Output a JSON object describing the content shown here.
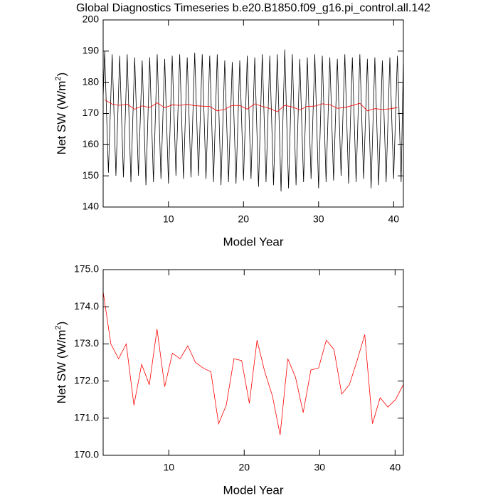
{
  "chart_data": [
    {
      "type": "line",
      "title": "Global Diagnostics Timeseries b.e20.B1850.f09_g16.pi_control.all.142",
      "x_label": "Model Year",
      "y_label": [
        "Net SW (W/m",
        "2",
        ")"
      ],
      "xlim": [
        1.3,
        41.3
      ],
      "xticks": [
        10,
        20,
        30,
        40
      ],
      "ylim": [
        140,
        200
      ],
      "yticks": [
        140,
        150,
        160,
        170,
        180,
        190,
        200
      ],
      "series": [
        {
          "color": "#000000",
          "x": [
            1.3,
            1.5,
            2,
            2.5,
            3,
            3.5,
            4,
            4.5,
            5,
            5.5,
            6,
            6.5,
            7,
            7.5,
            8,
            8.5,
            9,
            9.5,
            10,
            10.5,
            11,
            11.5,
            12,
            12.5,
            13,
            13.5,
            14,
            14.5,
            15,
            15.5,
            16,
            16.5,
            17,
            17.5,
            18,
            18.5,
            19,
            19.5,
            20,
            20.5,
            21,
            21.5,
            22,
            22.5,
            23,
            23.5,
            24,
            24.5,
            25,
            25.5,
            26,
            26.5,
            27,
            27.5,
            28,
            28.5,
            29,
            29.5,
            30,
            30.5,
            31,
            31.5,
            32,
            32.5,
            33,
            33.5,
            34,
            34.5,
            35,
            35.5,
            36,
            36.5,
            37,
            37.5,
            38,
            38.5,
            39,
            39.5,
            40,
            40.5,
            41,
            41.3
          ],
          "values": [
            175,
            190,
            151,
            189,
            150,
            188.5,
            149.5,
            189,
            148,
            188,
            150,
            187,
            147,
            188,
            148,
            189,
            149,
            187.5,
            147.5,
            188.5,
            150,
            189,
            149,
            188,
            149.5,
            189.5,
            150,
            189,
            149,
            188.5,
            148,
            189,
            147,
            187,
            148,
            186.5,
            147.5,
            187,
            148.5,
            188.5,
            149,
            188,
            146.5,
            189,
            148,
            188.5,
            147,
            189,
            145,
            190.5,
            146,
            189,
            147,
            187.5,
            148,
            188,
            149,
            189,
            146,
            188.5,
            148,
            188,
            148.5,
            187.5,
            150,
            189,
            147.5,
            188,
            148,
            189,
            149,
            187.5,
            146,
            188,
            147,
            187,
            148,
            188,
            149,
            188.5,
            148,
            188
          ]
        },
        {
          "color": "#ff0000",
          "x": [
            1.5,
            2.5,
            3.5,
            4.5,
            5.5,
            6.5,
            7.5,
            8.5,
            9.5,
            10.5,
            11.5,
            12.5,
            13.5,
            14.5,
            15.5,
            16.5,
            17.5,
            18.5,
            19.5,
            20.5,
            21.5,
            22.5,
            23.5,
            24.5,
            25.5,
            26.5,
            27.5,
            28.5,
            29.5,
            30.5,
            31.5,
            32.5,
            33.5,
            34.5,
            35.5,
            36.5,
            37.5,
            38.5,
            39.5,
            40.5
          ],
          "values": [
            174.4,
            173.0,
            172.6,
            173.0,
            171.35,
            172.45,
            171.9,
            173.4,
            171.85,
            172.75,
            172.6,
            172.95,
            172.5,
            172.35,
            172.25,
            170.85,
            171.35,
            172.6,
            172.55,
            171.4,
            173.1,
            172.25,
            171.6,
            170.55,
            172.6,
            172.1,
            171.15,
            172.3,
            172.35,
            173.1,
            172.85,
            171.65,
            171.9,
            172.55,
            173.25,
            170.85,
            171.55,
            171.3,
            171.5,
            171.9
          ]
        }
      ]
    },
    {
      "type": "line",
      "x_label": "Model Year",
      "y_label": [
        "Net SW (W/m",
        "2",
        ")"
      ],
      "xlim": [
        1.3,
        41.1
      ],
      "xticks": [
        10,
        20,
        30,
        40
      ],
      "ylim": [
        170,
        175
      ],
      "yticks": [
        {
          "value": 170,
          "label": "170.0"
        },
        {
          "value": 171,
          "label": "171.0"
        },
        {
          "value": 172,
          "label": "172.0"
        },
        {
          "value": 173,
          "label": "173.0"
        },
        {
          "value": 174,
          "label": "174.0"
        },
        {
          "value": 175,
          "label": "175.0"
        }
      ],
      "series": [
        {
          "color": "#ff0000",
          "x": [
            1.3,
            2.32,
            3.34,
            4.36,
            5.38,
            6.4,
            7.42,
            8.44,
            9.46,
            10.48,
            11.5,
            12.52,
            13.54,
            14.56,
            15.58,
            16.6,
            17.62,
            18.64,
            19.66,
            20.68,
            21.7,
            22.72,
            23.74,
            24.76,
            25.78,
            26.8,
            27.82,
            28.84,
            29.86,
            30.88,
            31.9,
            32.92,
            33.94,
            34.96,
            35.98,
            37.0,
            38.02,
            39.04,
            40.06,
            41.08
          ],
          "values": [
            174.4,
            173.0,
            172.6,
            173.0,
            171.35,
            172.45,
            171.9,
            173.4,
            171.85,
            172.75,
            172.6,
            172.95,
            172.5,
            172.35,
            172.25,
            170.85,
            171.35,
            172.6,
            172.55,
            171.4,
            173.1,
            172.25,
            171.6,
            170.55,
            172.6,
            172.1,
            171.15,
            172.3,
            172.35,
            173.1,
            172.85,
            171.65,
            171.9,
            172.55,
            173.25,
            170.85,
            171.55,
            171.3,
            171.5,
            171.9
          ]
        }
      ]
    }
  ]
}
